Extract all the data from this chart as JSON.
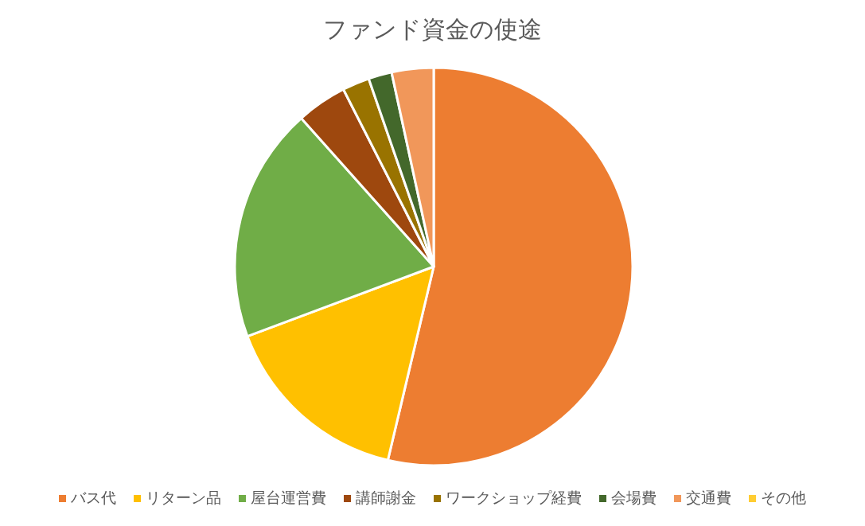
{
  "chart_data": {
    "type": "pie",
    "title": "ファンド資金の使途",
    "categories": [
      "バス代",
      "リターン品",
      "屋台運営費",
      "講師謝金",
      "ワークショップ経費",
      "会場費",
      "交通費",
      "その他"
    ],
    "values": [
      53.7,
      15.6,
      19.1,
      4.1,
      2.2,
      1.9,
      3.4,
      0
    ],
    "colors": [
      "#ed7d31",
      "#ffc000",
      "#70ad47",
      "#9e480e",
      "#997300",
      "#43682b",
      "#f1975a",
      "#ffcd33"
    ],
    "legend": "bottom"
  }
}
